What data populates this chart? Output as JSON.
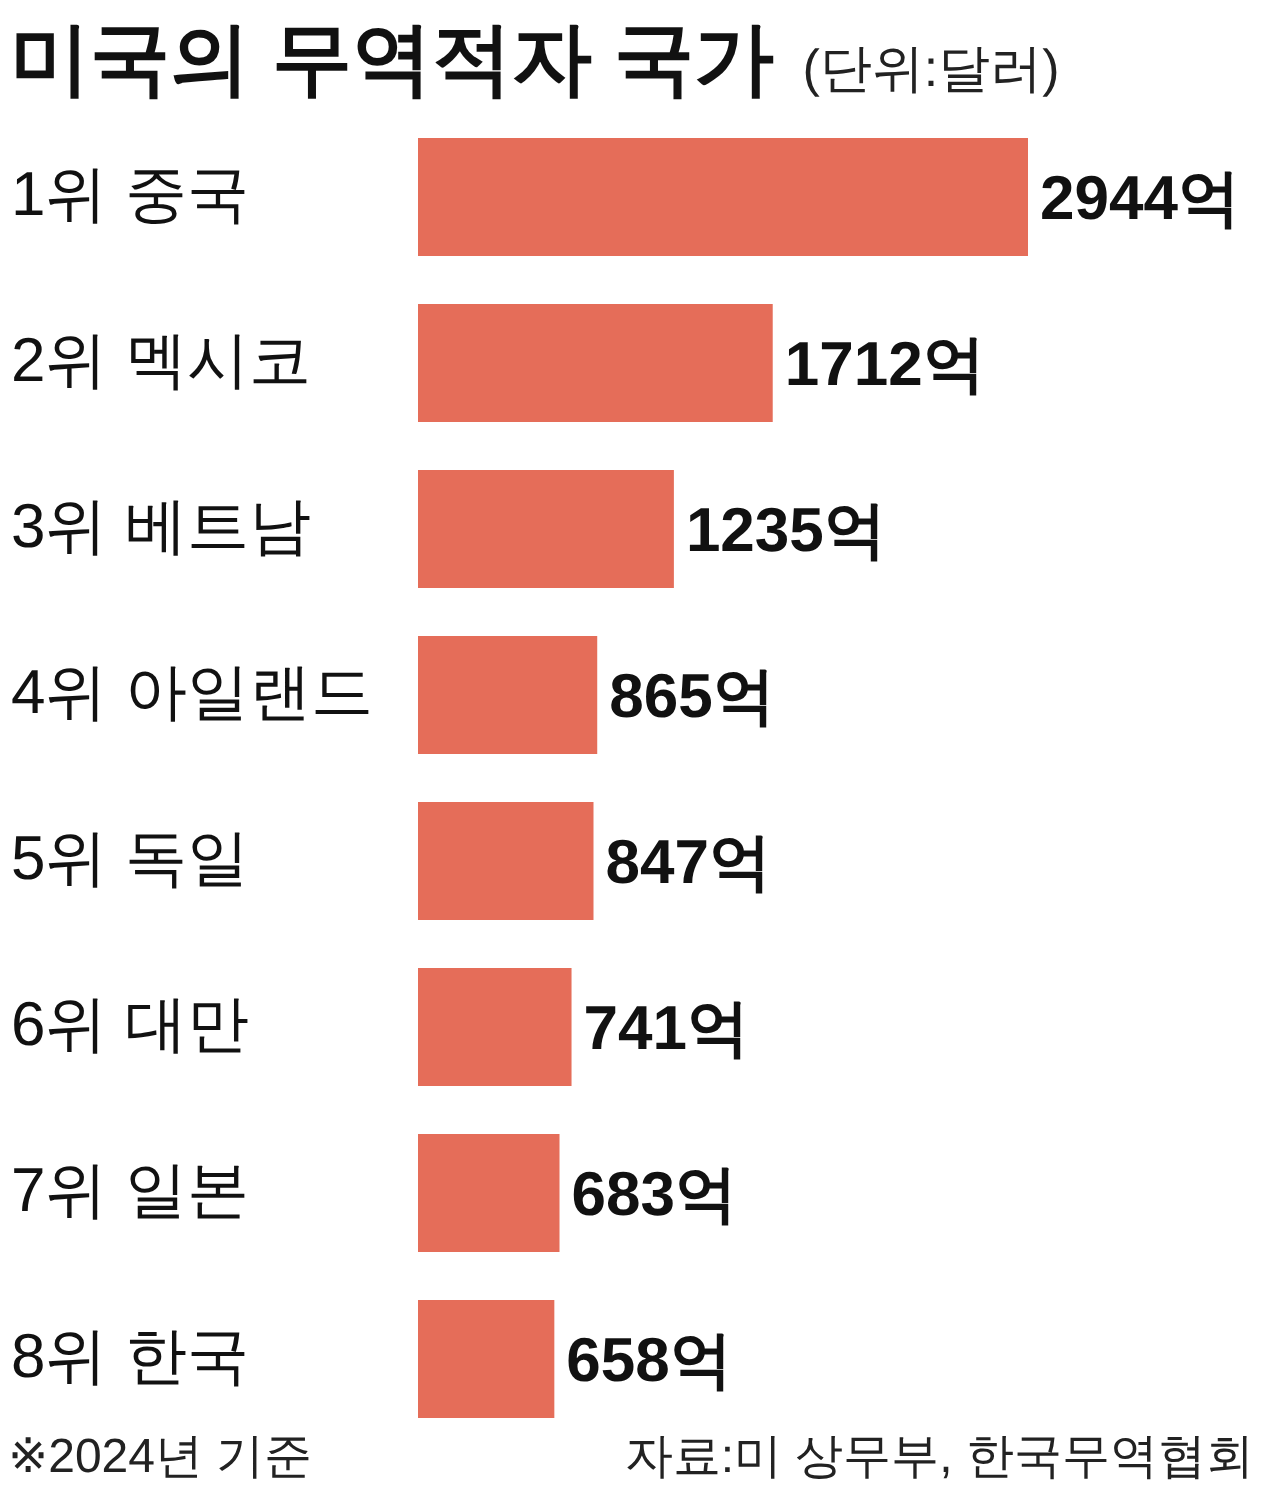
{
  "chart_data": {
    "type": "bar",
    "orientation": "horizontal",
    "title": "미국의 무역적자 국가",
    "subtitle": "(단위:달러)",
    "categories": [
      "1위 중국",
      "2위 멕시코",
      "3위 베트남",
      "4위 아일랜드",
      "5위 독일",
      "6위 대만",
      "7위 일본",
      "8위 한국"
    ],
    "values": [
      2944,
      1712,
      1235,
      865,
      847,
      741,
      683,
      658
    ],
    "value_labels": [
      "2944억",
      "1712억",
      "1235억",
      "865억",
      "847억",
      "741억",
      "683억",
      "658억"
    ],
    "color": "#e56d59",
    "tick_labels": "y",
    "annotations": [
      "※2024년 기준",
      "자료:미 상무부, 한국무역협회"
    ]
  }
}
